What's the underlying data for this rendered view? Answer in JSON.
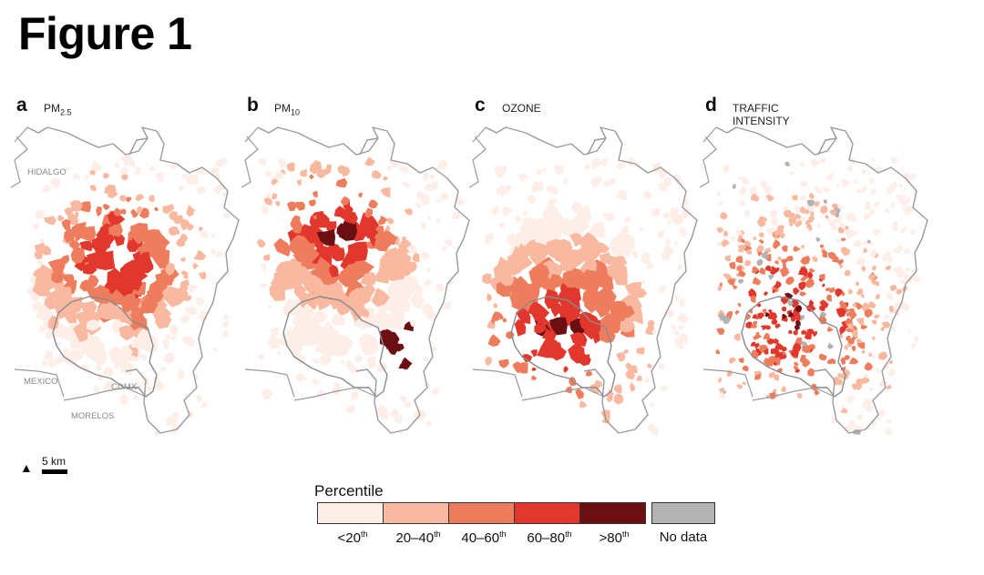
{
  "figure": {
    "title": "Figure 1"
  },
  "panels": [
    {
      "id": "a",
      "letter": "a",
      "title_main": "PM",
      "title_sub": "2.5"
    },
    {
      "id": "b",
      "letter": "b",
      "title_main": "PM",
      "title_sub": "10"
    },
    {
      "id": "c",
      "letter": "c",
      "title_main": "OZONE",
      "title_sub": ""
    },
    {
      "id": "d",
      "letter": "d",
      "title_main": "TRAFFIC\nINTENSITY",
      "title_sub": ""
    }
  ],
  "region_labels": {
    "hidalgo": "HIDALGO",
    "mexico": "MEXICO",
    "cdmx": "CDMX",
    "morelos": "MORELOS"
  },
  "scale": {
    "north": "▲",
    "label": "5 km"
  },
  "legend": {
    "title": "Percentile",
    "classes": [
      {
        "label_main": "<20",
        "label_sup": "th",
        "color": "#fdeee8"
      },
      {
        "label_main": "20–40",
        "label_sup": "th",
        "color": "#f8b9a0"
      },
      {
        "label_main": "40–60",
        "label_sup": "th",
        "color": "#ee7d5e"
      },
      {
        "label_main": "60–80",
        "label_sup": "th",
        "color": "#e2372d"
      },
      {
        "label_main": ">80",
        "label_sup": "th",
        "color": "#6b0f12"
      }
    ],
    "no_data": {
      "label": "No data",
      "color": "#b3b3b3"
    }
  }
}
